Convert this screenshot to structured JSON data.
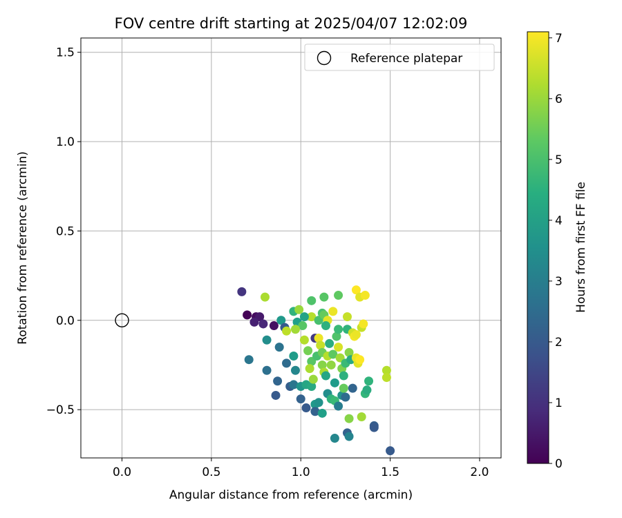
{
  "chart_data": {
    "type": "scatter",
    "title": "FOV centre drift starting at 2025/04/07 12:02:09",
    "xlabel": "Angular distance from reference (arcmin)",
    "ylabel": "Rotation from reference (arcmin)",
    "xlim": [
      -0.23,
      2.12
    ],
    "ylim": [
      -0.77,
      1.58
    ],
    "xticks": [
      0.0,
      0.5,
      1.0,
      1.5,
      2.0
    ],
    "xtick_labels": [
      "0.0",
      "0.5",
      "1.0",
      "1.5",
      "2.0"
    ],
    "yticks": [
      -0.5,
      0.0,
      0.5,
      1.0,
      1.5
    ],
    "ytick_labels": [
      "−0.5",
      "0.0",
      "0.5",
      "1.0",
      "1.5"
    ],
    "grid": true,
    "legend": {
      "placement": "top-right",
      "entries": [
        {
          "label": "Reference platepar",
          "marker": "open-circle"
        }
      ]
    },
    "reference_point": {
      "x": 0.0,
      "y": 0.0,
      "label": "Reference platepar"
    },
    "colorbar": {
      "label": "Hours from first FF file",
      "colormap": "viridis",
      "range": [
        0,
        7.1
      ],
      "ticks": [
        0,
        1,
        2,
        3,
        4,
        5,
        6,
        7
      ],
      "tick_labels": [
        "0",
        "1",
        "2",
        "3",
        "4",
        "5",
        "6",
        "7"
      ]
    },
    "points": [
      {
        "x": 0.7,
        "y": 0.03,
        "c": 0.05
      },
      {
        "x": 0.75,
        "y": 0.02,
        "c": 0.25
      },
      {
        "x": 0.77,
        "y": 0.02,
        "c": 0.5
      },
      {
        "x": 0.74,
        "y": -0.01,
        "c": 0.65
      },
      {
        "x": 0.79,
        "y": -0.02,
        "c": 0.8
      },
      {
        "x": 0.85,
        "y": -0.03,
        "c": 0.3
      },
      {
        "x": 0.67,
        "y": 0.16,
        "c": 1.1
      },
      {
        "x": 0.8,
        "y": 0.13,
        "c": 6.2
      },
      {
        "x": 0.89,
        "y": 0.0,
        "c": 3.8
      },
      {
        "x": 0.91,
        "y": -0.04,
        "c": 2.0
      },
      {
        "x": 0.96,
        "y": 0.05,
        "c": 4.6
      },
      {
        "x": 0.99,
        "y": 0.06,
        "c": 6.0
      },
      {
        "x": 0.98,
        "y": -0.01,
        "c": 4.0
      },
      {
        "x": 1.01,
        "y": -0.03,
        "c": 5.2
      },
      {
        "x": 0.92,
        "y": -0.06,
        "c": 6.4
      },
      {
        "x": 0.97,
        "y": -0.05,
        "c": 6.1
      },
      {
        "x": 0.81,
        "y": -0.11,
        "c": 3.5
      },
      {
        "x": 0.88,
        "y": -0.15,
        "c": 2.7
      },
      {
        "x": 0.71,
        "y": -0.22,
        "c": 2.8
      },
      {
        "x": 0.81,
        "y": -0.28,
        "c": 2.6
      },
      {
        "x": 0.87,
        "y": -0.34,
        "c": 2.3
      },
      {
        "x": 0.92,
        "y": -0.24,
        "c": 2.5
      },
      {
        "x": 0.94,
        "y": -0.37,
        "c": 2.1
      },
      {
        "x": 0.86,
        "y": -0.42,
        "c": 2.0
      },
      {
        "x": 0.96,
        "y": -0.2,
        "c": 3.9
      },
      {
        "x": 0.97,
        "y": -0.28,
        "c": 3.3
      },
      {
        "x": 0.96,
        "y": -0.36,
        "c": 2.8
      },
      {
        "x": 1.0,
        "y": -0.44,
        "c": 2.2
      },
      {
        "x": 1.0,
        "y": -0.37,
        "c": 3.7
      },
      {
        "x": 1.03,
        "y": -0.36,
        "c": 4.2
      },
      {
        "x": 1.03,
        "y": -0.49,
        "c": 2.0
      },
      {
        "x": 1.06,
        "y": -0.37,
        "c": 4.3
      },
      {
        "x": 1.08,
        "y": -0.47,
        "c": 3.8
      },
      {
        "x": 1.08,
        "y": -0.51,
        "c": 2.2
      },
      {
        "x": 1.1,
        "y": -0.46,
        "c": 3.6
      },
      {
        "x": 1.12,
        "y": -0.52,
        "c": 4.0
      },
      {
        "x": 1.15,
        "y": -0.41,
        "c": 3.5
      },
      {
        "x": 1.17,
        "y": -0.44,
        "c": 4.6
      },
      {
        "x": 1.19,
        "y": -0.45,
        "c": 4.8
      },
      {
        "x": 1.19,
        "y": -0.66,
        "c": 3.3
      },
      {
        "x": 1.21,
        "y": -0.48,
        "c": 3.0
      },
      {
        "x": 1.23,
        "y": -0.42,
        "c": 3.6
      },
      {
        "x": 1.25,
        "y": -0.43,
        "c": 2.5
      },
      {
        "x": 1.26,
        "y": -0.63,
        "c": 2.2
      },
      {
        "x": 1.27,
        "y": -0.65,
        "c": 3.2
      },
      {
        "x": 1.27,
        "y": -0.55,
        "c": 5.8
      },
      {
        "x": 1.29,
        "y": -0.38,
        "c": 2.3
      },
      {
        "x": 1.34,
        "y": -0.54,
        "c": 6.1
      },
      {
        "x": 1.36,
        "y": -0.41,
        "c": 4.7
      },
      {
        "x": 1.37,
        "y": -0.39,
        "c": 4.4
      },
      {
        "x": 1.38,
        "y": -0.34,
        "c": 4.6
      },
      {
        "x": 1.41,
        "y": -0.59,
        "c": 2.1
      },
      {
        "x": 1.41,
        "y": -0.6,
        "c": 2.0
      },
      {
        "x": 1.5,
        "y": -0.73,
        "c": 2.0
      },
      {
        "x": 1.48,
        "y": -0.28,
        "c": 6.3
      },
      {
        "x": 1.48,
        "y": -0.32,
        "c": 6.4
      },
      {
        "x": 1.02,
        "y": -0.11,
        "c": 6.3
      },
      {
        "x": 1.04,
        "y": -0.17,
        "c": 5.6
      },
      {
        "x": 1.06,
        "y": -0.23,
        "c": 5.2
      },
      {
        "x": 1.05,
        "y": -0.27,
        "c": 6.2
      },
      {
        "x": 1.07,
        "y": -0.33,
        "c": 6.0
      },
      {
        "x": 1.08,
        "y": -0.1,
        "c": 1.2
      },
      {
        "x": 1.09,
        "y": -0.2,
        "c": 5.0
      },
      {
        "x": 1.1,
        "y": -0.1,
        "c": 6.9
      },
      {
        "x": 1.11,
        "y": -0.14,
        "c": 6.5
      },
      {
        "x": 1.12,
        "y": -0.18,
        "c": 5.5
      },
      {
        "x": 1.12,
        "y": -0.25,
        "c": 5.8
      },
      {
        "x": 1.13,
        "y": -0.29,
        "c": 6.2
      },
      {
        "x": 1.14,
        "y": -0.31,
        "c": 4.2
      },
      {
        "x": 1.15,
        "y": -0.2,
        "c": 6.3
      },
      {
        "x": 1.16,
        "y": -0.13,
        "c": 4.4
      },
      {
        "x": 1.17,
        "y": -0.25,
        "c": 5.9
      },
      {
        "x": 1.18,
        "y": -0.19,
        "c": 5.3
      },
      {
        "x": 1.19,
        "y": -0.35,
        "c": 3.9
      },
      {
        "x": 1.2,
        "y": -0.09,
        "c": 5.1
      },
      {
        "x": 1.21,
        "y": -0.15,
        "c": 6.7
      },
      {
        "x": 1.22,
        "y": -0.21,
        "c": 6.1
      },
      {
        "x": 1.23,
        "y": -0.27,
        "c": 5.7
      },
      {
        "x": 1.24,
        "y": -0.31,
        "c": 4.5
      },
      {
        "x": 1.24,
        "y": -0.38,
        "c": 5.4
      },
      {
        "x": 1.25,
        "y": -0.24,
        "c": 4.8
      },
      {
        "x": 1.26,
        "y": -0.05,
        "c": 4.6
      },
      {
        "x": 1.27,
        "y": -0.18,
        "c": 5.8
      },
      {
        "x": 1.28,
        "y": -0.22,
        "c": 4.3
      },
      {
        "x": 1.29,
        "y": -0.07,
        "c": 6.6
      },
      {
        "x": 1.3,
        "y": -0.09,
        "c": 7.0
      },
      {
        "x": 1.31,
        "y": -0.08,
        "c": 6.9
      },
      {
        "x": 1.31,
        "y": -0.21,
        "c": 6.9
      },
      {
        "x": 1.32,
        "y": -0.24,
        "c": 6.8
      },
      {
        "x": 1.33,
        "y": -0.22,
        "c": 7.1
      },
      {
        "x": 1.34,
        "y": -0.04,
        "c": 6.5
      },
      {
        "x": 1.35,
        "y": -0.02,
        "c": 7.0
      },
      {
        "x": 1.31,
        "y": 0.17,
        "c": 7.1
      },
      {
        "x": 1.33,
        "y": 0.13,
        "c": 6.8
      },
      {
        "x": 1.36,
        "y": 0.14,
        "c": 7.0
      },
      {
        "x": 1.21,
        "y": 0.14,
        "c": 5.3
      },
      {
        "x": 1.18,
        "y": 0.05,
        "c": 6.9
      },
      {
        "x": 1.26,
        "y": 0.02,
        "c": 6.5
      },
      {
        "x": 1.13,
        "y": 0.13,
        "c": 5.2
      },
      {
        "x": 1.06,
        "y": 0.11,
        "c": 5.1
      },
      {
        "x": 1.06,
        "y": 0.02,
        "c": 6.3
      },
      {
        "x": 1.1,
        "y": 0.0,
        "c": 5.0
      },
      {
        "x": 1.12,
        "y": 0.04,
        "c": 5.0
      },
      {
        "x": 1.13,
        "y": 0.03,
        "c": 5.4
      },
      {
        "x": 1.15,
        "y": 0.0,
        "c": 6.8
      },
      {
        "x": 1.14,
        "y": -0.03,
        "c": 4.5
      },
      {
        "x": 1.21,
        "y": -0.05,
        "c": 4.8
      },
      {
        "x": 1.02,
        "y": 0.02,
        "c": 4.1
      }
    ]
  }
}
